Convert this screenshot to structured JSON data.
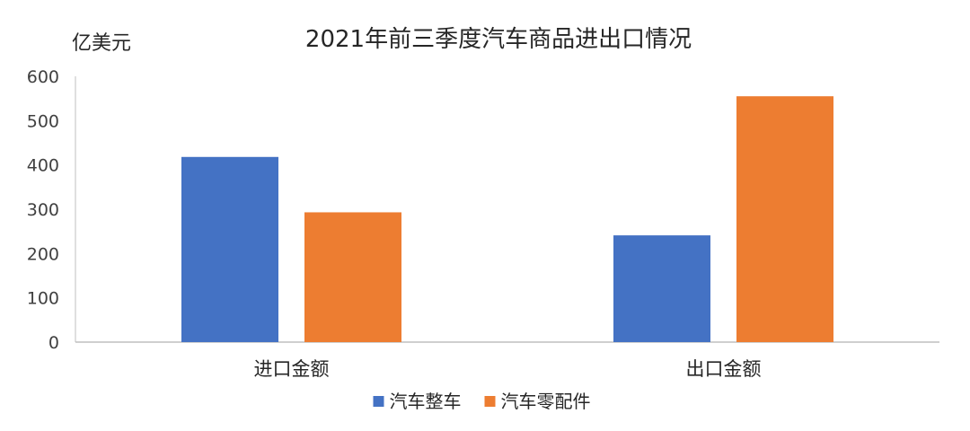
{
  "chart_data": {
    "type": "bar",
    "title": "2021年前三季度汽车商品进出口情况",
    "ylabel": "亿美元",
    "xlabel": "",
    "categories": [
      "进口金额",
      "出口金额"
    ],
    "series": [
      {
        "name": "汽车整车",
        "values": [
          418,
          241
        ],
        "color": "#4472C4"
      },
      {
        "name": "汽车零配件",
        "values": [
          293,
          555
        ],
        "color": "#ED7D31"
      }
    ],
    "ylim": [
      0,
      600
    ],
    "yticks": [
      0,
      100,
      200,
      300,
      400,
      500,
      600
    ],
    "grid": false,
    "legend_position": "bottom"
  }
}
